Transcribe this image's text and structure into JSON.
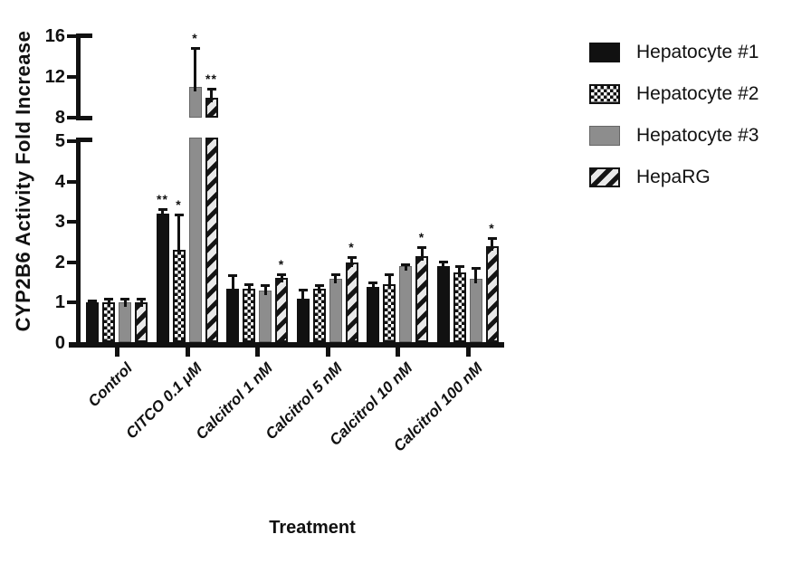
{
  "figure_title": "",
  "chart_data": {
    "type": "bar",
    "title": "",
    "xlabel": "Treatment",
    "ylabel": "CYP2B6 Activity Fold Increase",
    "grid": false,
    "legend_position": "right",
    "axis_break": {
      "lower_range": [
        0,
        5
      ],
      "upper_range": [
        8,
        16
      ]
    },
    "y_lower_ticks": [
      0,
      1,
      2,
      3,
      4,
      5
    ],
    "y_upper_ticks": [
      8,
      12,
      16
    ],
    "categories": [
      "Control",
      "CITCO 0.1 μM",
      "Calcitrol 1 nM",
      "Calcitrol 5 nM",
      "Calcitrol 10 nM",
      "Calcitrol 100 nM"
    ],
    "series": [
      {
        "name": "Hepatocyte #1",
        "pattern": "solid-black",
        "values": [
          1.0,
          3.2,
          1.35,
          1.1,
          1.4,
          1.9
        ],
        "errors": [
          0.07,
          0.15,
          0.35,
          0.25,
          0.12,
          0.15
        ],
        "sig": [
          "",
          "**",
          "",
          "",
          "",
          ""
        ]
      },
      {
        "name": "Hepatocyte #2",
        "pattern": "checkerboard",
        "values": [
          1.0,
          2.3,
          1.35,
          1.35,
          1.45,
          1.75
        ],
        "errors": [
          0.12,
          0.9,
          0.12,
          0.1,
          0.27,
          0.17
        ],
        "sig": [
          "",
          "*",
          "",
          "",
          "",
          ""
        ]
      },
      {
        "name": "Hepatocyte #3",
        "pattern": "solid-gray",
        "values": [
          1.0,
          11.0,
          1.3,
          1.6,
          1.9,
          1.6
        ],
        "errors": [
          0.13,
          3.9,
          0.15,
          0.12,
          0.08,
          0.28
        ],
        "sig": [
          "",
          "*",
          "",
          "",
          "",
          ""
        ]
      },
      {
        "name": "HepaRG",
        "pattern": "diagonal-stripes",
        "values": [
          1.0,
          10.0,
          1.62,
          2.0,
          2.15,
          2.4
        ],
        "errors": [
          0.12,
          0.95,
          0.1,
          0.15,
          0.25,
          0.22
        ],
        "sig": [
          "",
          "**",
          "*",
          "*",
          "*",
          "*"
        ]
      }
    ]
  },
  "legend": {
    "items": [
      {
        "label": "Hepatocyte #1",
        "pattern": "solid-black"
      },
      {
        "label": "Hepatocyte #2",
        "pattern": "checkerboard"
      },
      {
        "label": "Hepatocyte #3",
        "pattern": "solid-gray"
      },
      {
        "label": "HepaRG",
        "pattern": "diagonal-stripes"
      }
    ]
  },
  "colors": {
    "ink": "#111111",
    "gray_bar": "#8d8d8d",
    "stripe_bg": "#e9e9e9",
    "background": "#ffffff"
  }
}
